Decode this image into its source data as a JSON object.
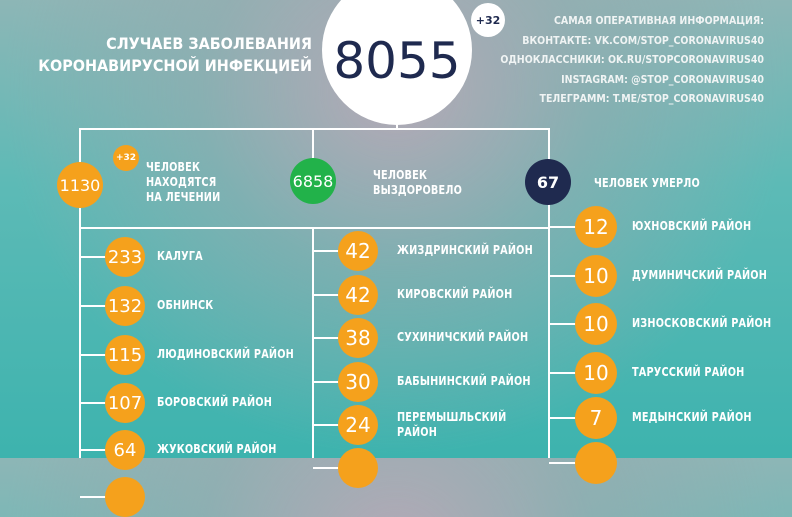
{
  "header": {
    "title_line1": "СЛУЧАЕВ ЗАБОЛЕВАНИЯ",
    "title_line2": "КОРОНАВИРУСНОЙ ИНФЕКЦИЕЙ",
    "total": "8055",
    "total_delta": "+32"
  },
  "info": [
    "САМАЯ ОПЕРАТИВНАЯ ИНФОРМАЦИЯ:",
    "ВКОНТАКТЕ: VK.COM/STOP_CORONAVIRUS40",
    "ОДНОКЛАССНИКИ: OK.RU/STOPCORONAVIRUS40",
    "INSTAGRAM: @STOP_CORONAVIRUS40",
    "ТЕЛЕГРАММ: T.ME/STOP_CORONAVIRUS40"
  ],
  "summary": {
    "treatment": {
      "value": "1130",
      "delta": "+32",
      "label_line1": "ЧЕЛОВЕК",
      "label_line2": "НАХОДЯТСЯ",
      "label_line3": "НА ЛЕЧЕНИИ"
    },
    "recovered": {
      "value": "6858",
      "label_line1": "ЧЕЛОВЕК",
      "label_line2": "ВЫЗДОРОВЕЛО"
    },
    "died": {
      "value": "67",
      "label": "ЧЕЛОВЕК УМЕРЛО"
    }
  },
  "colors": {
    "orange": "#f5a11c",
    "green": "#22b24a",
    "navy": "#1f2a4f"
  },
  "columns": [
    [
      {
        "value": "233",
        "name": "КАЛУГА"
      },
      {
        "value": "132",
        "name": "ОБНИНСК"
      },
      {
        "value": "115",
        "name": "ЛЮДИНОВСКИЙ РАЙОН"
      },
      {
        "value": "107",
        "name": "БОРОВСКИЙ РАЙОН"
      },
      {
        "value": "64",
        "name": "ЖУКОВСКИЙ РАЙОН"
      }
    ],
    [
      {
        "value": "42",
        "name": "ЖИЗДРИНСКИЙ РАЙОН"
      },
      {
        "value": "42",
        "name": "КИРОВСКИЙ РАЙОН"
      },
      {
        "value": "38",
        "name": "СУХИНИЧСКИЙ РАЙОН"
      },
      {
        "value": "30",
        "name": "БАБЫНИНСКИЙ РАЙОН"
      },
      {
        "value": "24",
        "name": "ПЕРЕМЫШЛЬСКИЙ РАЙОН"
      }
    ],
    [
      {
        "value": "12",
        "name": "ЮХНОВСКИЙ РАЙОН"
      },
      {
        "value": "10",
        "name": "ДУМИНИЧСКИЙ РАЙОН"
      },
      {
        "value": "10",
        "name": "ИЗНОСКОВСКИЙ РАЙОН"
      },
      {
        "value": "10",
        "name": "ТАРУССКИЙ РАЙОН"
      },
      {
        "value": "7",
        "name": "МЕДЫНСКИЙ РАЙОН"
      }
    ]
  ]
}
